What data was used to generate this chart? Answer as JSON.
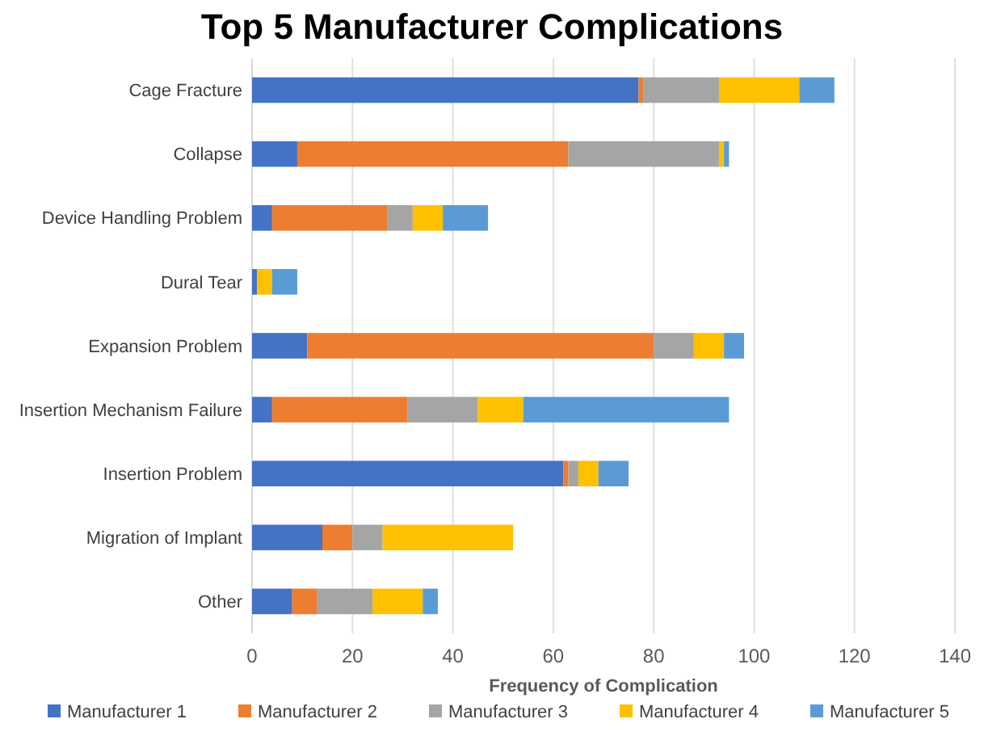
{
  "chart_data": {
    "type": "bar",
    "orientation": "horizontal",
    "stacked": true,
    "title": "Top 5 Manufacturer Complications",
    "xlabel": "Frequency of Complication",
    "categories": [
      "Cage Fracture",
      "Collapse",
      "Device Handling Problem",
      "Dural Tear",
      "Expansion Problem",
      "Insertion Mechanism Failure",
      "Insertion Problem",
      "Migration of Implant",
      "Other"
    ],
    "series": [
      {
        "name": "Manufacturer 1",
        "color": "#4472c4",
        "values": [
          77,
          9,
          4,
          1,
          11,
          4,
          62,
          14,
          8
        ]
      },
      {
        "name": "Manufacturer 2",
        "color": "#ed7d31",
        "values": [
          1,
          54,
          23,
          0,
          69,
          27,
          1,
          6,
          5
        ]
      },
      {
        "name": "Manufacturer 3",
        "color": "#a5a5a5",
        "values": [
          15,
          30,
          5,
          0,
          8,
          14,
          2,
          6,
          11
        ]
      },
      {
        "name": "Manufacturer 4",
        "color": "#ffc000",
        "values": [
          16,
          1,
          6,
          3,
          6,
          9,
          4,
          26,
          10
        ]
      },
      {
        "name": "Manufacturer 5",
        "color": "#5b9bd5",
        "values": [
          7,
          1,
          9,
          5,
          4,
          41,
          6,
          0,
          3
        ]
      }
    ],
    "xlim": [
      0,
      140
    ],
    "xticks": [
      0,
      20,
      40,
      60,
      80,
      100,
      120,
      140
    ],
    "grid": "x",
    "legend": "bottom"
  }
}
